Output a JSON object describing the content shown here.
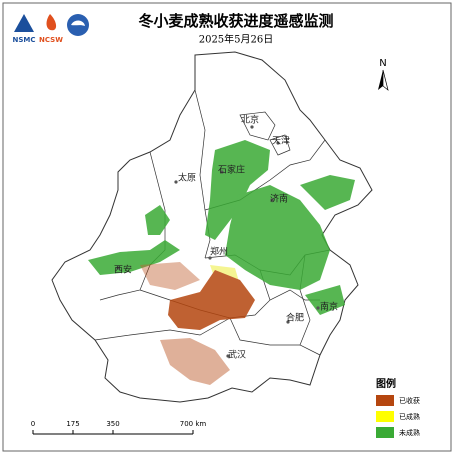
{
  "header": {
    "title": "冬小麦成熟收获进度遥感监测",
    "date": "2025年5月26日"
  },
  "logos": [
    "NSMC",
    "NCSW"
  ],
  "north": "N",
  "cities": [
    "北京",
    "天津",
    "石家庄",
    "太原",
    "济南",
    "郑州",
    "西安",
    "南京",
    "合肥",
    "武汉"
  ],
  "legend": {
    "title": "图例",
    "items": [
      "已收获",
      "已成熟",
      "未成熟"
    ]
  },
  "scale": [
    "0",
    "175",
    "350",
    "700 km"
  ]
}
